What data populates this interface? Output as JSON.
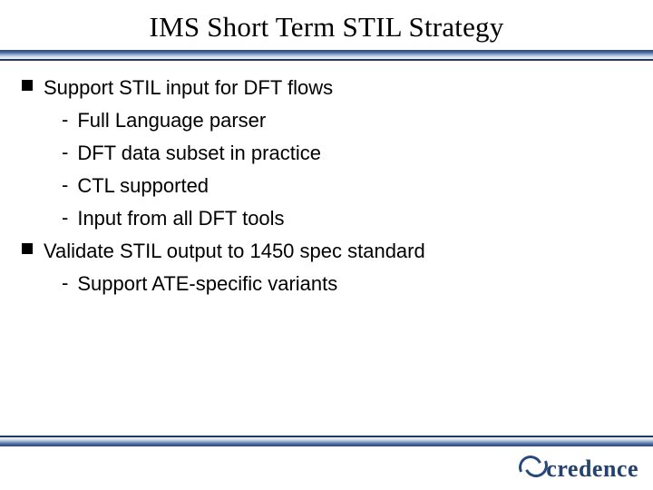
{
  "title": "IMS Short Term STIL Strategy",
  "bullets": [
    {
      "text": "Support STIL input for DFT flows",
      "subs": [
        "Full Language parser",
        "DFT data subset in practice",
        "CTL supported",
        "Input from all DFT tools"
      ]
    },
    {
      "text": "Validate STIL output to 1450 spec standard",
      "subs": [
        "Support ATE-specific variants"
      ]
    }
  ],
  "logo_text": "credence",
  "colors": {
    "rule_dark": "#1f3a63",
    "brand": "#274a7c",
    "text": "#000000",
    "background": "#ffffff"
  },
  "fonts": {
    "title_family": "Times New Roman",
    "title_size_pt": 31,
    "body_family": "Arial",
    "body_size_pt": 22
  }
}
